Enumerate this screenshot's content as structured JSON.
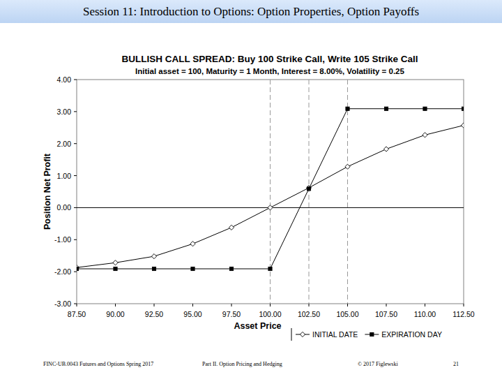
{
  "page": {
    "header": "Session 11:  Introduction to Options: Option Properties, Option Payoffs",
    "footer": [
      "FINC-UB.0043 Futures and Options  Spring 2017",
      "Part II. Option Pricing and Hedging",
      "© 2017 Figlewski",
      "21"
    ]
  },
  "chart_data": {
    "type": "line",
    "title": "BULLISH CALL SPREAD:  Buy 100 Strike Call, Write 105 Strike Call",
    "subtitle": "Initial asset = 100,  Maturity = 1 Month,  Interest = 8.00%,  Volatility = 0.25",
    "x_label": "Asset Price",
    "y_label": "Position Net Profit",
    "x": [
      87.5,
      90,
      92.5,
      95,
      97.5,
      100,
      102.5,
      105,
      107.5,
      110,
      112.5
    ],
    "series": [
      {
        "name": "INITIAL DATE",
        "color": "#000000",
        "marker": "diamond-open",
        "line_style": "solid",
        "values": [
          -1.87,
          -1.72,
          -1.52,
          -1.13,
          -0.62,
          0.0,
          0.62,
          1.28,
          1.83,
          2.27,
          2.57
        ]
      },
      {
        "name": "EXPIRATION DAY",
        "color": "#000000",
        "marker": "square",
        "line_style": "solid",
        "values": [
          -1.91,
          -1.91,
          -1.91,
          -1.91,
          -1.91,
          -1.91,
          0.59,
          3.09,
          3.09,
          3.09,
          3.09
        ]
      }
    ],
    "xlim": [
      87.5,
      112.5
    ],
    "xticks": [
      {
        "value": 87.5,
        "label": "87.50"
      },
      {
        "value": 90,
        "label": "90.00"
      },
      {
        "value": 92.5,
        "label": "92.50"
      },
      {
        "value": 95,
        "label": "95.00"
      },
      {
        "value": 97.5,
        "label": "97.50"
      },
      {
        "value": 100,
        "label": "100.00"
      },
      {
        "value": 102.5,
        "label": "102.50"
      },
      {
        "value": 105,
        "label": "105.00"
      },
      {
        "value": 107.5,
        "label": "107.50"
      },
      {
        "value": 110,
        "label": "110.00"
      },
      {
        "value": 112.5,
        "label": "112.50"
      }
    ],
    "ylim": [
      -3,
      4
    ],
    "yticks": [
      {
        "value": 4,
        "label": "4.00"
      },
      {
        "value": 3,
        "label": "3.00"
      },
      {
        "value": 2,
        "label": "2.00"
      },
      {
        "value": 1,
        "label": "1.00"
      },
      {
        "value": 0,
        "label": "0.00"
      },
      {
        "value": -1,
        "label": "-1.00"
      },
      {
        "value": -2,
        "label": "-2.00"
      },
      {
        "value": -3,
        "label": "-3.00"
      }
    ],
    "vlines": [
      100,
      102.5,
      105
    ],
    "hlines": [
      0
    ],
    "grid": false,
    "legend": "bottom-right"
  }
}
